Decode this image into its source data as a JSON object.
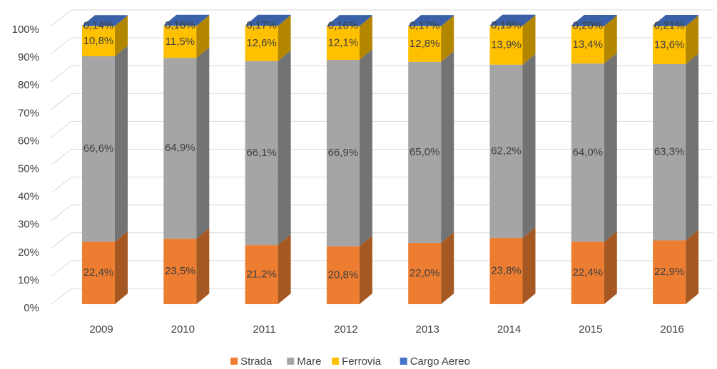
{
  "chart_data": {
    "type": "bar3d_stacked",
    "categories": [
      "2009",
      "2010",
      "2011",
      "2012",
      "2013",
      "2014",
      "2015",
      "2016"
    ],
    "series": [
      {
        "name": "Strada",
        "color": "#ed7d31",
        "values": [
          22.4,
          23.5,
          21.2,
          20.8,
          22.0,
          23.8,
          22.4,
          22.9
        ],
        "value_labels": [
          "22,4%",
          "23,5%",
          "21,2%",
          "20,8%",
          "22,0%",
          "23,8%",
          "22,4%",
          "22,9%"
        ]
      },
      {
        "name": "Mare",
        "color": "#a5a5a5",
        "values": [
          66.6,
          64.9,
          66.1,
          66.9,
          65.0,
          62.2,
          64.0,
          63.3
        ],
        "value_labels": [
          "66,6%",
          "64,9%",
          "66,1%",
          "66,9%",
          "65,0%",
          "62,2%",
          "64,0%",
          "63,3%"
        ]
      },
      {
        "name": "Ferrovia",
        "color": "#ffc000",
        "values": [
          10.8,
          11.5,
          12.6,
          12.1,
          12.8,
          13.9,
          13.4,
          13.6
        ],
        "value_labels": [
          "10,8%",
          "11,5%",
          "12,6%",
          "12,1%",
          "12,8%",
          "13,9%",
          "13,4%",
          "13,6%"
        ]
      },
      {
        "name": "Cargo Aereo",
        "color": "#4472c4",
        "values": [
          0.14,
          0.16,
          0.17,
          0.16,
          0.17,
          0.19,
          0.2,
          0.21
        ],
        "value_labels": [
          "0,14%",
          "0,16%",
          "0,17%",
          "0,16%",
          "0,17%",
          "0,19%",
          "0,20%",
          "0,21%"
        ]
      }
    ],
    "ylim": [
      0,
      100
    ],
    "yticks": [
      {
        "value": 0,
        "label": "0%"
      },
      {
        "value": 10,
        "label": "10%"
      },
      {
        "value": 20,
        "label": "20%"
      },
      {
        "value": 30,
        "label": "30%"
      },
      {
        "value": 40,
        "label": "40%"
      },
      {
        "value": 50,
        "label": "50%"
      },
      {
        "value": 60,
        "label": "60%"
      },
      {
        "value": 70,
        "label": "70%"
      },
      {
        "value": 80,
        "label": "80%"
      },
      {
        "value": 90,
        "label": "90%"
      },
      {
        "value": 100,
        "label": "100%"
      }
    ],
    "grid": true,
    "legend": "bottom"
  }
}
